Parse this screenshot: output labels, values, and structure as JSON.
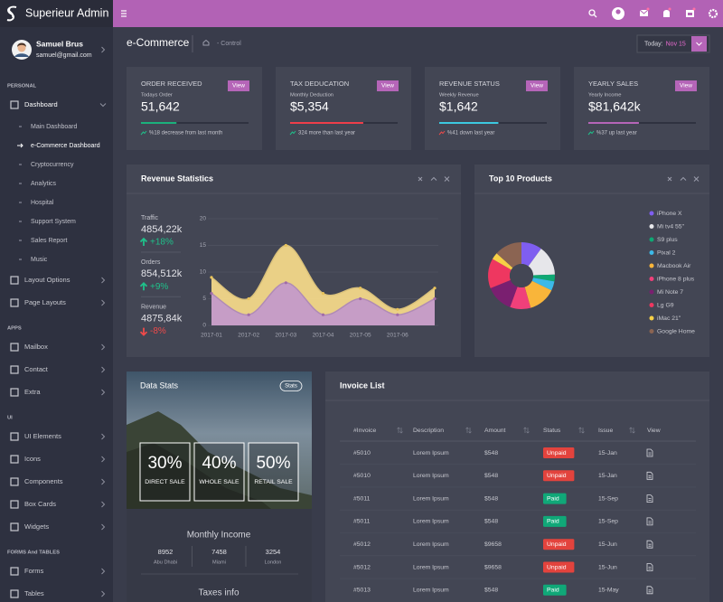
{
  "sidebar": {
    "brand": "Superieur Admin",
    "user": {
      "name": "Samuel Brus",
      "email": "samuel@gmail.com"
    },
    "sections": [
      {
        "title": "PERSONAL",
        "items": [
          {
            "label": "Dashboard",
            "expanded": true,
            "children": [
              {
                "label": "Main Dashboard"
              },
              {
                "label": "e-Commerce Dashboard",
                "active": true
              },
              {
                "label": "Cryptocurrency"
              },
              {
                "label": "Analytics"
              },
              {
                "label": "Hospital"
              },
              {
                "label": "Support System"
              },
              {
                "label": "Sales Report"
              },
              {
                "label": "Music"
              }
            ]
          },
          {
            "label": "Layout Options"
          },
          {
            "label": "Page Layouts"
          }
        ]
      },
      {
        "title": "APPS",
        "items": [
          {
            "label": "Mailbox"
          },
          {
            "label": "Contact"
          },
          {
            "label": "Extra"
          }
        ]
      },
      {
        "title": "UI",
        "items": [
          {
            "label": "UI Elements"
          },
          {
            "label": "Icons"
          },
          {
            "label": "Components"
          },
          {
            "label": "Box Cards"
          },
          {
            "label": "Widgets"
          }
        ]
      },
      {
        "title": "FORMS And TABLES",
        "items": [
          {
            "label": "Forms"
          },
          {
            "label": "Tables"
          }
        ]
      }
    ]
  },
  "header": {
    "page_title": "e-Commerce",
    "breadcrumb": "- Control",
    "date_label": "Today:",
    "date_value": "Nov 15"
  },
  "stat_cards": [
    {
      "title": "ORDER RECEIVED",
      "button": "View",
      "subtitle": "Todays Order",
      "value": "51,642",
      "progress": 33,
      "color": "#1bb17c",
      "footer": "%18 decrease from last month",
      "icon_color": "#1fc18a"
    },
    {
      "title": "TAX DEDUCATION",
      "button": "View",
      "subtitle": "Monthly Deduction",
      "value": "$5,354",
      "progress": 68,
      "color": "#ef3e4a",
      "footer": "324 more than last year",
      "icon_color": "#1fc18a"
    },
    {
      "title": "REVENUE STATUS",
      "button": "View",
      "subtitle": "Weekly Revenue",
      "value": "$1,642",
      "progress": 55,
      "color": "#3cc8e0",
      "footer": "%41 down last year",
      "icon_color": "#ef4a4a"
    },
    {
      "title": "YEARLY SALES",
      "button": "View",
      "subtitle": "Yearly Income",
      "value": "$81,642k",
      "progress": 47,
      "color": "#b565b8",
      "footer": "%37 up last year",
      "icon_color": "#1fc18a"
    }
  ],
  "revenue_statistics": {
    "title": "Revenue Statistics",
    "stats": [
      {
        "label": "Traffic",
        "value": "4854,22k",
        "change": "+18%",
        "trend_color": "#1fc18a",
        "up": true
      },
      {
        "label": "Orders",
        "value": "854,512k",
        "change": "+9%",
        "trend_color": "#1fc18a",
        "up": true
      },
      {
        "label": "Revenue",
        "value": "4875,84k",
        "change": "-8%",
        "trend_color": "#ef4a4a",
        "up": false
      }
    ],
    "chart": {
      "type": "area",
      "categories": [
        "2017-01",
        "2017-02",
        "2017-03",
        "2017-04",
        "2017-05",
        "2017-06",
        null
      ],
      "series": [
        {
          "color": "#f3d889",
          "values": [
            9,
            5,
            15,
            6,
            7,
            3,
            7
          ]
        },
        {
          "color": "#c49ac9",
          "values": [
            6,
            2,
            8,
            2,
            5,
            2,
            5
          ]
        }
      ],
      "ylim": [
        0,
        20
      ],
      "yticks": [
        0,
        5,
        10,
        15,
        20
      ],
      "grid": true
    }
  },
  "top_products": {
    "title": "Top 10 Products",
    "chart": {
      "type": "pie",
      "donut": true,
      "categories": [
        "iPhone X",
        "Mi tv4 55\"",
        "S9 plus",
        "Pixal 2",
        "Macbook Air",
        "iPhone 8 plus",
        "Mi Note 7",
        "Lg G9",
        "iMac 21\"",
        "Google Home"
      ],
      "values": [
        9,
        13,
        3,
        4,
        12,
        9,
        12,
        13,
        3,
        12
      ],
      "colors": [
        "#7f5ef0",
        "#e6e6ea",
        "#0fa874",
        "#3cb9e8",
        "#f9b53a",
        "#f0407a",
        "#7a1f70",
        "#ee3760",
        "#f7d046",
        "#8b6452"
      ]
    }
  },
  "data_stats": {
    "title": "Data Stats",
    "badge": "Stats",
    "boxes": [
      {
        "value": "30%",
        "label": "DIRECT SALE"
      },
      {
        "value": "40%",
        "label": "WHOLE SALE"
      },
      {
        "value": "50%",
        "label": "RETAIL SALE"
      }
    ],
    "income_title": "Monthly Income",
    "cities": [
      {
        "value": "8952",
        "label": "Abu Dhabi"
      },
      {
        "value": "7458",
        "label": "Miami"
      },
      {
        "value": "3254",
        "label": "London"
      }
    ],
    "taxes_title": "Taxes info"
  },
  "invoice_list": {
    "title": "Invoice List",
    "columns": [
      "#Invoice",
      "Description",
      "Amount",
      "Status",
      "Issue",
      "View"
    ],
    "rows": [
      {
        "invoice": "#5010",
        "description": "Lorem Ipsum",
        "amount": "$548",
        "status": "Unpaid",
        "status_color": "#e3433d",
        "issue": "15-Jan"
      },
      {
        "invoice": "#5010",
        "description": "Lorem Ipsum",
        "amount": "$548",
        "status": "Unpaid",
        "status_color": "#e3433d",
        "issue": "15-Jan"
      },
      {
        "invoice": "#5011",
        "description": "Lorem Ipsum",
        "amount": "$548",
        "status": "Paid",
        "status_color": "#10a878",
        "issue": "15-Sep"
      },
      {
        "invoice": "#5011",
        "description": "Lorem Ipsum",
        "amount": "$548",
        "status": "Paid",
        "status_color": "#10a878",
        "issue": "15-Sep"
      },
      {
        "invoice": "#5012",
        "description": "Lorem Ipsum",
        "amount": "$9658",
        "status": "Unpaid",
        "status_color": "#e3433d",
        "issue": "15-Jun"
      },
      {
        "invoice": "#5012",
        "description": "Lorem Ipsum",
        "amount": "$9658",
        "status": "Unpaid",
        "status_color": "#e3433d",
        "issue": "15-Jun"
      },
      {
        "invoice": "#5013",
        "description": "Lorem Ipsum",
        "amount": "$548",
        "status": "Paid",
        "status_color": "#10a878",
        "issue": "15-May"
      }
    ]
  }
}
